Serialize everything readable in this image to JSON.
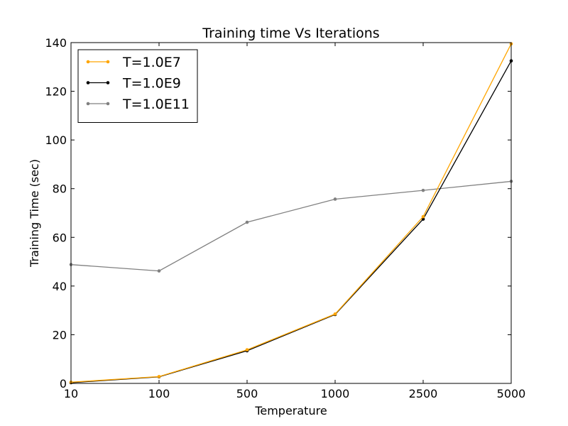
{
  "chart_data": {
    "type": "line",
    "title": "Training time Vs Iterations",
    "xlabel": "Temperature",
    "ylabel": "Training Time (sec)",
    "categories": [
      "10",
      "100",
      "500",
      "1000",
      "2500",
      "5000"
    ],
    "ylim": [
      0,
      140
    ],
    "yticks": [
      0,
      20,
      40,
      60,
      80,
      100,
      120,
      140
    ],
    "grid": false,
    "legend_position": "top-left",
    "series": [
      {
        "name": "T=1.0E7",
        "color": "#ffa500",
        "values": [
          0.5,
          2.8,
          13.8,
          28.5,
          68.5,
          139.5
        ]
      },
      {
        "name": "T=1.0E9",
        "color": "#000000",
        "values": [
          0.3,
          2.7,
          13.4,
          28.3,
          67.5,
          132.5
        ]
      },
      {
        "name": "T=1.0E11",
        "color": "#808080",
        "values": [
          48.8,
          46.2,
          66.2,
          75.7,
          79.3,
          83.0
        ]
      }
    ]
  }
}
